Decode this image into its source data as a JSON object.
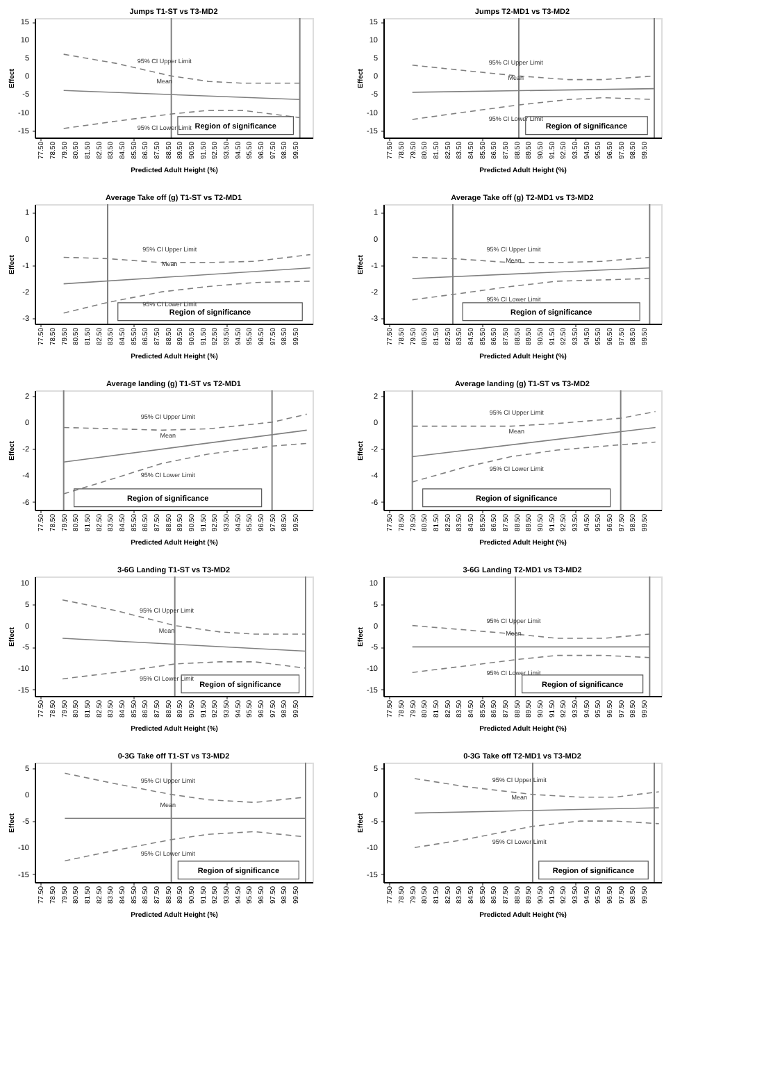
{
  "chart_data": [
    {
      "type": "line",
      "title": "Jumps T1-ST vs T3-MD2",
      "xlabel": "Predicted Adult Height (%)",
      "ylabel": "Effect",
      "xlim": [
        77,
        101
      ],
      "ylim": [
        -17,
        16
      ],
      "yticks": [
        -15,
        -10,
        -5,
        0,
        5,
        10,
        15
      ],
      "grid": false,
      "marker": "none",
      "xticks": [
        {
          "value": 77.5,
          "label": "77.50"
        },
        {
          "value": 78.5,
          "label": "78.50"
        },
        {
          "value": 79.5,
          "label": "79.50"
        },
        {
          "value": 80.5,
          "label": "80.50"
        },
        {
          "value": 81.5,
          "label": "81.50"
        },
        {
          "value": 82.5,
          "label": "82.50"
        },
        {
          "value": 83.5,
          "label": "83.50"
        },
        {
          "value": 84.5,
          "label": "84.50"
        },
        {
          "value": 85.5,
          "label": "85.50"
        },
        {
          "value": 86.5,
          "label": "86.50"
        },
        {
          "value": 87.5,
          "label": "87.50"
        },
        {
          "value": 88.5,
          "label": "88.50"
        },
        {
          "value": 89.5,
          "label": "89.50"
        },
        {
          "value": 90.5,
          "label": "90.50"
        },
        {
          "value": 91.5,
          "label": "91.50"
        },
        {
          "value": 92.5,
          "label": "92.50"
        },
        {
          "value": 93.5,
          "label": "93.50"
        },
        {
          "value": 94.5,
          "label": "94.50"
        },
        {
          "value": 95.5,
          "label": "95.50"
        },
        {
          "value": 96.5,
          "label": "96.50"
        },
        {
          "value": 97.5,
          "label": "97.50"
        },
        {
          "value": 98.5,
          "label": "98.50"
        },
        {
          "value": 99.5,
          "label": "99.50"
        }
      ],
      "series": [
        {
          "color": "#808080",
          "line_style": "dashed",
          "x": [
            79.5,
            84,
            88.8,
            92,
            95,
            99.9
          ],
          "values": [
            6,
            3.5,
            0,
            -1.5,
            -2,
            -2
          ]
        },
        {
          "color": "#808080",
          "line_style": "solid",
          "x": [
            79.5,
            99.9
          ],
          "values": [
            -4,
            -6.5
          ]
        },
        {
          "color": "#808080",
          "line_style": "dashed",
          "x": [
            79.5,
            84,
            88.8,
            92,
            95,
            99.9
          ],
          "values": [
            -14.5,
            -12.5,
            -10.5,
            -9.5,
            -9.5,
            -11.5
          ]
        }
      ],
      "ref_lines": [
        {
          "axis": "x",
          "value": 88.8
        },
        {
          "axis": "x",
          "value": 99.9
        }
      ],
      "annotations": [
        "95% CI Upper Limit",
        "Mean",
        "95% CI Lower Limit",
        "Region of significance"
      ]
    },
    {
      "type": "line",
      "title": "Jumps T2-MD1 vs T3-MD2",
      "xlabel": "Predicted Adult Height (%)",
      "ylabel": "Effect",
      "xlim": [
        77,
        101
      ],
      "ylim": [
        -17,
        16
      ],
      "yticks": [
        -15,
        -10,
        -5,
        0,
        5,
        10,
        15
      ],
      "grid": false,
      "marker": "none",
      "xticks": [
        {
          "value": 77.5,
          "label": "77.50"
        },
        {
          "value": 78.5,
          "label": "78.50"
        },
        {
          "value": 79.5,
          "label": "79.50"
        },
        {
          "value": 80.5,
          "label": "80.50"
        },
        {
          "value": 81.5,
          "label": "81.50"
        },
        {
          "value": 82.5,
          "label": "82.50"
        },
        {
          "value": 83.5,
          "label": "83.50"
        },
        {
          "value": 84.5,
          "label": "84.50"
        },
        {
          "value": 85.5,
          "label": "85.50"
        },
        {
          "value": 86.5,
          "label": "86.50"
        },
        {
          "value": 87.5,
          "label": "87.50"
        },
        {
          "value": 88.5,
          "label": "88.50"
        },
        {
          "value": 89.5,
          "label": "89.50"
        },
        {
          "value": 90.5,
          "label": "90.50"
        },
        {
          "value": 91.5,
          "label": "91.50"
        },
        {
          "value": 92.5,
          "label": "92.50"
        },
        {
          "value": 93.5,
          "label": "93.50"
        },
        {
          "value": 94.5,
          "label": "94.50"
        },
        {
          "value": 95.5,
          "label": "95.50"
        },
        {
          "value": 96.5,
          "label": "96.50"
        },
        {
          "value": 97.5,
          "label": "97.50"
        },
        {
          "value": 98.5,
          "label": "98.50"
        },
        {
          "value": 99.5,
          "label": "99.50"
        }
      ],
      "series": [
        {
          "color": "#808080",
          "line_style": "dashed",
          "x": [
            79.5,
            84,
            88.7,
            93,
            96,
            100.4
          ],
          "values": [
            3,
            1.5,
            0,
            -1,
            -1,
            0
          ]
        },
        {
          "color": "#808080",
          "line_style": "solid",
          "x": [
            79.5,
            100.4
          ],
          "values": [
            -4.5,
            -3.5
          ]
        },
        {
          "color": "#808080",
          "line_style": "dashed",
          "x": [
            79.5,
            84,
            88.7,
            93,
            96,
            100.4
          ],
          "values": [
            -12,
            -10,
            -8,
            -6.5,
            -6,
            -6.5
          ]
        }
      ],
      "ref_lines": [
        {
          "axis": "x",
          "value": 88.7
        },
        {
          "axis": "x",
          "value": 100.4
        }
      ],
      "annotations": [
        "95% CI Upper Limit",
        "Mean",
        "95% CI Lower Limit",
        "Region of significance"
      ]
    },
    {
      "type": "line",
      "title": "Average Take off (g) T1-ST vs T2-MD1",
      "xlabel": "Predicted Adult Height (%)",
      "ylabel": "Effect",
      "xlim": [
        77,
        101
      ],
      "ylim": [
        -3.2,
        1.3
      ],
      "yticks": [
        -3,
        -2,
        -1,
        0,
        1
      ],
      "grid": false,
      "marker": "none",
      "xticks": [
        {
          "value": 77.5,
          "label": "77.50"
        },
        {
          "value": 78.5,
          "label": "78.50"
        },
        {
          "value": 79.5,
          "label": "79.50"
        },
        {
          "value": 80.5,
          "label": "80.50"
        },
        {
          "value": 81.5,
          "label": "81.50"
        },
        {
          "value": 82.5,
          "label": "82.50"
        },
        {
          "value": 83.5,
          "label": "83.50"
        },
        {
          "value": 84.5,
          "label": "84.50"
        },
        {
          "value": 85.5,
          "label": "85.50"
        },
        {
          "value": 86.5,
          "label": "86.50"
        },
        {
          "value": 87.5,
          "label": "87.50"
        },
        {
          "value": 88.5,
          "label": "88.50"
        },
        {
          "value": 89.5,
          "label": "89.50"
        },
        {
          "value": 90.5,
          "label": "90.50"
        },
        {
          "value": 91.5,
          "label": "91.50"
        },
        {
          "value": 92.5,
          "label": "92.50"
        },
        {
          "value": 93.5,
          "label": "93.50"
        },
        {
          "value": 94.5,
          "label": "94.50"
        },
        {
          "value": 95.5,
          "label": "95.50"
        },
        {
          "value": 96.5,
          "label": "96.50"
        },
        {
          "value": 97.5,
          "label": "97.50"
        },
        {
          "value": 98.5,
          "label": "98.50"
        },
        {
          "value": 99.5,
          "label": "99.50"
        }
      ],
      "series": [
        {
          "color": "#808080",
          "line_style": "dashed",
          "x": [
            79.5,
            83.3,
            88,
            92,
            96,
            100.8
          ],
          "values": [
            -0.7,
            -0.75,
            -0.9,
            -0.9,
            -0.85,
            -0.6
          ]
        },
        {
          "color": "#808080",
          "line_style": "solid",
          "x": [
            79.5,
            100.8
          ],
          "values": [
            -1.7,
            -1.1
          ]
        },
        {
          "color": "#808080",
          "line_style": "dashed",
          "x": [
            79.5,
            83.3,
            88,
            92,
            96,
            100.8
          ],
          "values": [
            -2.8,
            -2.4,
            -2,
            -1.8,
            -1.65,
            -1.6
          ]
        }
      ],
      "ref_lines": [
        {
          "axis": "x",
          "value": 83.3
        }
      ],
      "annotations": [
        "95% CI Upper Limit",
        "Mean",
        "95% CI Lower Limit",
        "Region of significance"
      ]
    },
    {
      "type": "line",
      "title": "Average Take off (g) T2-MD1 vs T3-MD2",
      "xlabel": "Predicted Adult Height (%)",
      "ylabel": "Effect",
      "xlim": [
        77,
        101
      ],
      "ylim": [
        -3.2,
        1.3
      ],
      "yticks": [
        -3,
        -2,
        -1,
        0,
        1
      ],
      "grid": false,
      "marker": "none",
      "xticks": [
        {
          "value": 77.5,
          "label": "77.50"
        },
        {
          "value": 78.5,
          "label": "78.50"
        },
        {
          "value": 79.5,
          "label": "79.50"
        },
        {
          "value": 80.5,
          "label": "80.50"
        },
        {
          "value": 81.5,
          "label": "81.50"
        },
        {
          "value": 82.5,
          "label": "82.50"
        },
        {
          "value": 83.5,
          "label": "83.50"
        },
        {
          "value": 84.5,
          "label": "84.50"
        },
        {
          "value": 85.5,
          "label": "85.50"
        },
        {
          "value": 86.5,
          "label": "86.50"
        },
        {
          "value": 87.5,
          "label": "87.50"
        },
        {
          "value": 88.5,
          "label": "88.50"
        },
        {
          "value": 89.5,
          "label": "89.50"
        },
        {
          "value": 90.5,
          "label": "90.50"
        },
        {
          "value": 91.5,
          "label": "91.50"
        },
        {
          "value": 92.5,
          "label": "92.50"
        },
        {
          "value": 93.5,
          "label": "93.50"
        },
        {
          "value": 94.5,
          "label": "94.50"
        },
        {
          "value": 95.5,
          "label": "95.50"
        },
        {
          "value": 96.5,
          "label": "96.50"
        },
        {
          "value": 97.5,
          "label": "97.50"
        },
        {
          "value": 98.5,
          "label": "98.50"
        },
        {
          "value": 99.5,
          "label": "99.50"
        }
      ],
      "series": [
        {
          "color": "#808080",
          "line_style": "dashed",
          "x": [
            79.5,
            83,
            88,
            92,
            96,
            100
          ],
          "values": [
            -0.7,
            -0.75,
            -0.9,
            -0.9,
            -0.85,
            -0.7
          ]
        },
        {
          "color": "#808080",
          "line_style": "solid",
          "x": [
            79.5,
            100
          ],
          "values": [
            -1.5,
            -1.1
          ]
        },
        {
          "color": "#808080",
          "line_style": "dashed",
          "x": [
            79.5,
            83,
            88,
            92,
            96,
            100
          ],
          "values": [
            -2.3,
            -2.1,
            -1.8,
            -1.6,
            -1.55,
            -1.5
          ]
        }
      ],
      "ref_lines": [
        {
          "axis": "x",
          "value": 83
        },
        {
          "axis": "x",
          "value": 100
        }
      ],
      "annotations": [
        "95% CI Upper Limit",
        "Mean",
        "95% CI Lower Limit",
        "Region of significance"
      ]
    },
    {
      "type": "line",
      "title": "Average landing (g) T1-ST vs T2-MD1",
      "xlabel": "Predicted Adult Height (%)",
      "ylabel": "Effect",
      "xlim": [
        77,
        101
      ],
      "ylim": [
        -6.6,
        2.4
      ],
      "yticks": [
        -6,
        -4,
        -2,
        0,
        2
      ],
      "grid": false,
      "marker": "none",
      "xticks": [
        {
          "value": 77.5,
          "label": "77.50"
        },
        {
          "value": 78.5,
          "label": "78.50"
        },
        {
          "value": 79.5,
          "label": "79.50"
        },
        {
          "value": 80.5,
          "label": "80.50"
        },
        {
          "value": 81.5,
          "label": "81.50"
        },
        {
          "value": 82.5,
          "label": "82.50"
        },
        {
          "value": 83.5,
          "label": "83.50"
        },
        {
          "value": 84.5,
          "label": "84.50"
        },
        {
          "value": 85.5,
          "label": "85.50"
        },
        {
          "value": 86.5,
          "label": "86.50"
        },
        {
          "value": 87.5,
          "label": "87.50"
        },
        {
          "value": 88.5,
          "label": "88.50"
        },
        {
          "value": 89.5,
          "label": "89.50"
        },
        {
          "value": 90.5,
          "label": "90.50"
        },
        {
          "value": 91.5,
          "label": "91.50"
        },
        {
          "value": 92.5,
          "label": "92.50"
        },
        {
          "value": 93.5,
          "label": "93.50"
        },
        {
          "value": 94.5,
          "label": "94.50"
        },
        {
          "value": 95.5,
          "label": "95.50"
        },
        {
          "value": 96.5,
          "label": "96.50"
        },
        {
          "value": 97.5,
          "label": "97.50"
        },
        {
          "value": 98.5,
          "label": "98.50"
        },
        {
          "value": 99.5,
          "label": "99.50"
        }
      ],
      "series": [
        {
          "color": "#808080",
          "line_style": "dashed",
          "x": [
            79.5,
            84,
            88,
            92,
            97.5,
            100.5
          ],
          "values": [
            -0.4,
            -0.5,
            -0.6,
            -0.5,
            0,
            0.6
          ]
        },
        {
          "color": "#808080",
          "line_style": "solid",
          "x": [
            79.5,
            100.5
          ],
          "values": [
            -3,
            -0.6
          ]
        },
        {
          "color": "#808080",
          "line_style": "dashed",
          "x": [
            79.5,
            84,
            88,
            92,
            97.5,
            100.5
          ],
          "values": [
            -5.4,
            -4.2,
            -3.1,
            -2.4,
            -1.8,
            -1.6
          ]
        }
      ],
      "ref_lines": [
        {
          "axis": "x",
          "value": 79.5
        },
        {
          "axis": "x",
          "value": 97.5
        }
      ],
      "annotations": [
        "95% CI Upper Limit",
        "Mean",
        "95% CI Lower Limit",
        "Region of significance"
      ]
    },
    {
      "type": "line",
      "title": "Average landing (g) T1-ST vs T3-MD2",
      "xlabel": "Predicted Adult Height (%)",
      "ylabel": "Effect",
      "xlim": [
        77,
        101
      ],
      "ylim": [
        -6.6,
        2.4
      ],
      "yticks": [
        -6,
        -4,
        -2,
        0,
        2
      ],
      "grid": false,
      "marker": "none",
      "xticks": [
        {
          "value": 77.5,
          "label": "77.50"
        },
        {
          "value": 78.5,
          "label": "78.50"
        },
        {
          "value": 79.5,
          "label": "79.50"
        },
        {
          "value": 80.5,
          "label": "80.50"
        },
        {
          "value": 81.5,
          "label": "81.50"
        },
        {
          "value": 82.5,
          "label": "82.50"
        },
        {
          "value": 83.5,
          "label": "83.50"
        },
        {
          "value": 84.5,
          "label": "84.50"
        },
        {
          "value": 85.5,
          "label": "85.50"
        },
        {
          "value": 86.5,
          "label": "86.50"
        },
        {
          "value": 87.5,
          "label": "87.50"
        },
        {
          "value": 88.5,
          "label": "88.50"
        },
        {
          "value": 89.5,
          "label": "89.50"
        },
        {
          "value": 90.5,
          "label": "90.50"
        },
        {
          "value": 91.5,
          "label": "91.50"
        },
        {
          "value": 92.5,
          "label": "92.50"
        },
        {
          "value": 93.5,
          "label": "93.50"
        },
        {
          "value": 94.5,
          "label": "94.50"
        },
        {
          "value": 95.5,
          "label": "95.50"
        },
        {
          "value": 96.5,
          "label": "96.50"
        },
        {
          "value": 97.5,
          "label": "97.50"
        },
        {
          "value": 98.5,
          "label": "98.50"
        },
        {
          "value": 99.5,
          "label": "99.50"
        }
      ],
      "series": [
        {
          "color": "#808080",
          "line_style": "dashed",
          "x": [
            79.5,
            84,
            88,
            92,
            97.5,
            100.5
          ],
          "values": [
            -0.3,
            -0.3,
            -0.3,
            -0.1,
            0.3,
            0.8
          ]
        },
        {
          "color": "#808080",
          "line_style": "solid",
          "x": [
            79.5,
            100.5
          ],
          "values": [
            -2.6,
            -0.4
          ]
        },
        {
          "color": "#808080",
          "line_style": "dashed",
          "x": [
            79.5,
            84,
            88,
            92,
            97.5,
            100.5
          ],
          "values": [
            -4.5,
            -3.4,
            -2.6,
            -2.1,
            -1.7,
            -1.5
          ]
        }
      ],
      "ref_lines": [
        {
          "axis": "x",
          "value": 79.5
        },
        {
          "axis": "x",
          "value": 97.5
        }
      ],
      "annotations": [
        "95% CI Upper Limit",
        "Mean",
        "95% CI Lower Limit",
        "Region of significance"
      ]
    },
    {
      "type": "line",
      "title": "3-6G Landing T1-ST vs T3-MD2",
      "xlabel": "Predicted Adult Height (%)",
      "ylabel": "Effect",
      "xlim": [
        77,
        101
      ],
      "ylim": [
        -16.5,
        11.5
      ],
      "yticks": [
        -15,
        -10,
        -5,
        0,
        5,
        10
      ],
      "grid": false,
      "marker": "none",
      "xticks": [
        {
          "value": 77.5,
          "label": "77.50"
        },
        {
          "value": 78.5,
          "label": "78.50"
        },
        {
          "value": 79.5,
          "label": "79.50"
        },
        {
          "value": 80.5,
          "label": "80.50"
        },
        {
          "value": 81.5,
          "label": "81.50"
        },
        {
          "value": 82.5,
          "label": "82.50"
        },
        {
          "value": 83.5,
          "label": "83.50"
        },
        {
          "value": 84.5,
          "label": "84.50"
        },
        {
          "value": 85.5,
          "label": "85.50"
        },
        {
          "value": 86.5,
          "label": "86.50"
        },
        {
          "value": 87.5,
          "label": "87.50"
        },
        {
          "value": 88.5,
          "label": "88.50"
        },
        {
          "value": 89.5,
          "label": "89.50"
        },
        {
          "value": 90.5,
          "label": "90.50"
        },
        {
          "value": 91.5,
          "label": "91.50"
        },
        {
          "value": 92.5,
          "label": "92.50"
        },
        {
          "value": 93.5,
          "label": "93.50"
        },
        {
          "value": 94.5,
          "label": "94.50"
        },
        {
          "value": 95.5,
          "label": "95.50"
        },
        {
          "value": 96.5,
          "label": "96.50"
        },
        {
          "value": 97.5,
          "label": "97.50"
        },
        {
          "value": 98.5,
          "label": "98.50"
        },
        {
          "value": 99.5,
          "label": "99.50"
        }
      ],
      "series": [
        {
          "color": "#808080",
          "line_style": "dashed",
          "x": [
            79.4,
            84,
            89.1,
            93,
            96,
            100.4
          ],
          "values": [
            6,
            3.5,
            0,
            -1.5,
            -2,
            -2
          ]
        },
        {
          "color": "#808080",
          "line_style": "solid",
          "x": [
            79.4,
            100.4
          ],
          "values": [
            -3,
            -6
          ]
        },
        {
          "color": "#808080",
          "line_style": "dashed",
          "x": [
            79.4,
            84,
            89.1,
            93,
            96,
            100.4
          ],
          "values": [
            -12.5,
            -11,
            -9,
            -8.5,
            -8.5,
            -10
          ]
        }
      ],
      "ref_lines": [
        {
          "axis": "x",
          "value": 89.1
        },
        {
          "axis": "x",
          "value": 100.4
        }
      ],
      "annotations": [
        "95% CI Upper Limit",
        "Mean",
        "95% CI Lower Limit",
        "Region of significance"
      ]
    },
    {
      "type": "line",
      "title": "3-6G Landing T2-MD1 vs T3-MD2",
      "xlabel": "Predicted Adult Height (%)",
      "ylabel": "Effect",
      "xlim": [
        77,
        101
      ],
      "ylim": [
        -16.5,
        11.5
      ],
      "yticks": [
        -15,
        -10,
        -5,
        0,
        5,
        10
      ],
      "grid": false,
      "marker": "none",
      "xticks": [
        {
          "value": 77.5,
          "label": "77.50"
        },
        {
          "value": 78.5,
          "label": "78.50"
        },
        {
          "value": 79.5,
          "label": "79.50"
        },
        {
          "value": 80.5,
          "label": "80.50"
        },
        {
          "value": 81.5,
          "label": "81.50"
        },
        {
          "value": 82.5,
          "label": "82.50"
        },
        {
          "value": 83.5,
          "label": "83.50"
        },
        {
          "value": 84.5,
          "label": "84.50"
        },
        {
          "value": 85.5,
          "label": "85.50"
        },
        {
          "value": 86.5,
          "label": "86.50"
        },
        {
          "value": 87.5,
          "label": "87.50"
        },
        {
          "value": 88.5,
          "label": "88.50"
        },
        {
          "value": 89.5,
          "label": "89.50"
        },
        {
          "value": 90.5,
          "label": "90.50"
        },
        {
          "value": 91.5,
          "label": "91.50"
        },
        {
          "value": 92.5,
          "label": "92.50"
        },
        {
          "value": 93.5,
          "label": "93.50"
        },
        {
          "value": 94.5,
          "label": "94.50"
        },
        {
          "value": 95.5,
          "label": "95.50"
        },
        {
          "value": 96.5,
          "label": "96.50"
        },
        {
          "value": 97.5,
          "label": "97.50"
        },
        {
          "value": 98.5,
          "label": "98.50"
        },
        {
          "value": 99.5,
          "label": "99.50"
        }
      ],
      "series": [
        {
          "color": "#808080",
          "line_style": "dashed",
          "x": [
            79.5,
            84,
            88.4,
            92,
            96,
            100
          ],
          "values": [
            0,
            -1,
            -2,
            -3,
            -3,
            -2
          ]
        },
        {
          "color": "#808080",
          "line_style": "solid",
          "x": [
            79.5,
            100
          ],
          "values": [
            -5,
            -5
          ]
        },
        {
          "color": "#808080",
          "line_style": "dashed",
          "x": [
            79.5,
            84,
            88.4,
            92,
            96,
            100
          ],
          "values": [
            -11,
            -9.5,
            -8,
            -7,
            -7,
            -7.5
          ]
        }
      ],
      "ref_lines": [
        {
          "axis": "x",
          "value": 88.4
        },
        {
          "axis": "x",
          "value": 100
        }
      ],
      "annotations": [
        "95% CI Upper Limit",
        "Mean",
        "95% CI Lower Limit",
        "Region of significance"
      ]
    },
    {
      "type": "line",
      "title": "0-3G Take off T1-ST vs T3-MD2",
      "xlabel": "Predicted Adult Height (%)",
      "ylabel": "Effect",
      "xlim": [
        77,
        101
      ],
      "ylim": [
        -16.5,
        6
      ],
      "yticks": [
        -15,
        -10,
        -5,
        0,
        5
      ],
      "grid": false,
      "marker": "none",
      "xticks": [
        {
          "value": 77.5,
          "label": "77.50"
        },
        {
          "value": 78.5,
          "label": "78.50"
        },
        {
          "value": 79.5,
          "label": "79.50"
        },
        {
          "value": 80.5,
          "label": "80.50"
        },
        {
          "value": 81.5,
          "label": "81.50"
        },
        {
          "value": 82.5,
          "label": "82.50"
        },
        {
          "value": 83.5,
          "label": "83.50"
        },
        {
          "value": 84.5,
          "label": "84.50"
        },
        {
          "value": 85.5,
          "label": "85.50"
        },
        {
          "value": 86.5,
          "label": "86.50"
        },
        {
          "value": 87.5,
          "label": "87.50"
        },
        {
          "value": 88.5,
          "label": "88.50"
        },
        {
          "value": 89.5,
          "label": "89.50"
        },
        {
          "value": 90.5,
          "label": "90.50"
        },
        {
          "value": 91.5,
          "label": "91.50"
        },
        {
          "value": 92.5,
          "label": "92.50"
        },
        {
          "value": 93.5,
          "label": "93.50"
        },
        {
          "value": 94.5,
          "label": "94.50"
        },
        {
          "value": 95.5,
          "label": "95.50"
        },
        {
          "value": 96.5,
          "label": "96.50"
        },
        {
          "value": 97.5,
          "label": "97.50"
        },
        {
          "value": 98.5,
          "label": "98.50"
        },
        {
          "value": 99.5,
          "label": "99.50"
        }
      ],
      "series": [
        {
          "color": "#808080",
          "line_style": "dashed",
          "x": [
            79.6,
            84,
            88.8,
            92,
            96,
            100.4
          ],
          "values": [
            4,
            2,
            0,
            -1,
            -1.5,
            -0.5
          ]
        },
        {
          "color": "#808080",
          "line_style": "solid",
          "x": [
            79.6,
            100.4
          ],
          "values": [
            -4.5,
            -4.5
          ]
        },
        {
          "color": "#808080",
          "line_style": "dashed",
          "x": [
            79.6,
            84,
            88.8,
            92,
            96,
            100.4
          ],
          "values": [
            -12.5,
            -10.5,
            -8.5,
            -7.5,
            -7,
            -8
          ]
        }
      ],
      "ref_lines": [
        {
          "axis": "x",
          "value": 88.8
        },
        {
          "axis": "x",
          "value": 100.4
        }
      ],
      "annotations": [
        "95% CI Upper Limit",
        "Mean",
        "95% CI Lower Limit",
        "Region of significance"
      ]
    },
    {
      "type": "line",
      "title": "0-3G Take off T2-MD1 vs T3-MD2",
      "xlabel": "Predicted Adult Height (%)",
      "ylabel": "Effect",
      "xlim": [
        77,
        101
      ],
      "ylim": [
        -16.5,
        6
      ],
      "yticks": [
        -15,
        -10,
        -5,
        0,
        5
      ],
      "grid": false,
      "marker": "none",
      "xticks": [
        {
          "value": 77.5,
          "label": "77.50"
        },
        {
          "value": 78.5,
          "label": "78.50"
        },
        {
          "value": 79.5,
          "label": "79.50"
        },
        {
          "value": 80.5,
          "label": "80.50"
        },
        {
          "value": 81.5,
          "label": "81.50"
        },
        {
          "value": 82.5,
          "label": "82.50"
        },
        {
          "value": 83.5,
          "label": "83.50"
        },
        {
          "value": 84.5,
          "label": "84.50"
        },
        {
          "value": 85.5,
          "label": "85.50"
        },
        {
          "value": 86.5,
          "label": "86.50"
        },
        {
          "value": 87.5,
          "label": "87.50"
        },
        {
          "value": 88.5,
          "label": "88.50"
        },
        {
          "value": 89.5,
          "label": "89.50"
        },
        {
          "value": 90.5,
          "label": "90.50"
        },
        {
          "value": 91.5,
          "label": "91.50"
        },
        {
          "value": 92.5,
          "label": "92.50"
        },
        {
          "value": 93.5,
          "label": "93.50"
        },
        {
          "value": 94.5,
          "label": "94.50"
        },
        {
          "value": 95.5,
          "label": "95.50"
        },
        {
          "value": 96.5,
          "label": "96.50"
        },
        {
          "value": 97.5,
          "label": "97.50"
        },
        {
          "value": 98.5,
          "label": "98.50"
        },
        {
          "value": 99.5,
          "label": "99.50"
        }
      ],
      "series": [
        {
          "color": "#808080",
          "line_style": "dashed",
          "x": [
            79.7,
            84,
            89.9,
            94,
            97,
            100.8
          ],
          "values": [
            3,
            1.5,
            0,
            -0.5,
            -0.5,
            0.5
          ]
        },
        {
          "color": "#808080",
          "line_style": "solid",
          "x": [
            79.7,
            100.8
          ],
          "values": [
            -3.5,
            -2.5
          ]
        },
        {
          "color": "#808080",
          "line_style": "dashed",
          "x": [
            79.7,
            84,
            89.9,
            94,
            97,
            100.8
          ],
          "values": [
            -10,
            -8.5,
            -6,
            -5,
            -5,
            -5.5
          ]
        }
      ],
      "ref_lines": [
        {
          "axis": "x",
          "value": 89.9
        },
        {
          "axis": "x",
          "value": 100.4
        }
      ],
      "annotations": [
        "95% CI Upper Limit",
        "Mean",
        "95% CI Lower Limit",
        "Region of significance"
      ]
    }
  ]
}
